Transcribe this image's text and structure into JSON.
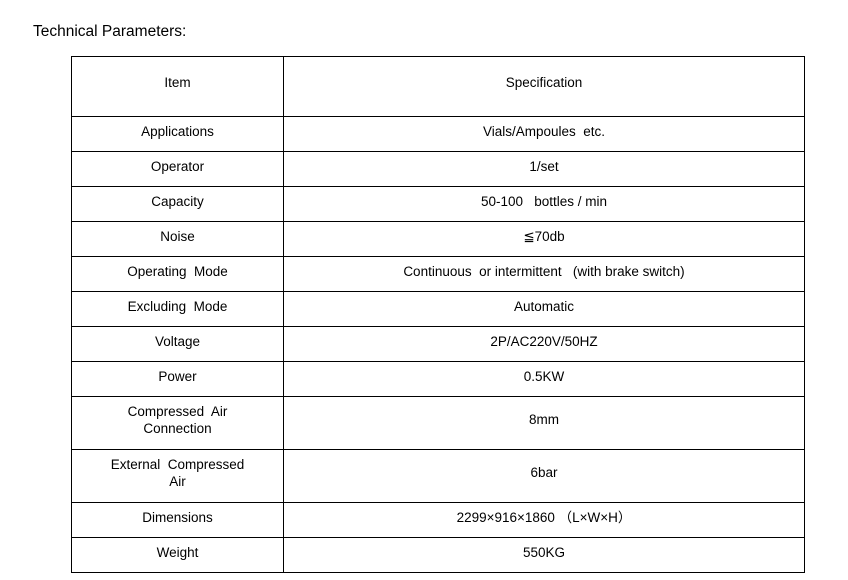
{
  "title": "Technical Parameters:",
  "table": {
    "header": {
      "item": "Item",
      "specification": "Specification"
    },
    "rows": [
      {
        "item": "Applications",
        "spec": "Vials/Ampoules  etc."
      },
      {
        "item": "Operator",
        "spec": "1/set"
      },
      {
        "item": "Capacity",
        "spec": "50-100   bottles / min"
      },
      {
        "item": "Noise",
        "spec": "≦70db"
      },
      {
        "item": "Operating  Mode",
        "spec": "Continuous  or intermittent   (with brake switch)"
      },
      {
        "item": "Excluding  Mode",
        "spec": "Automatic"
      },
      {
        "item": "Voltage",
        "spec": "2P/AC220V/50HZ"
      },
      {
        "item": "Power",
        "spec": "0.5KW"
      },
      {
        "item": "Compressed  Air\nConnection",
        "spec": "8mm"
      },
      {
        "item": "External  Compressed\nAir",
        "spec": "6bar"
      },
      {
        "item": "Dimensions",
        "spec": "2299×916×1860 （L×W×H）"
      },
      {
        "item": "Weight",
        "spec": "550KG"
      }
    ]
  },
  "colors": {
    "text": "#000000",
    "border": "#000000",
    "background": "#ffffff"
  }
}
